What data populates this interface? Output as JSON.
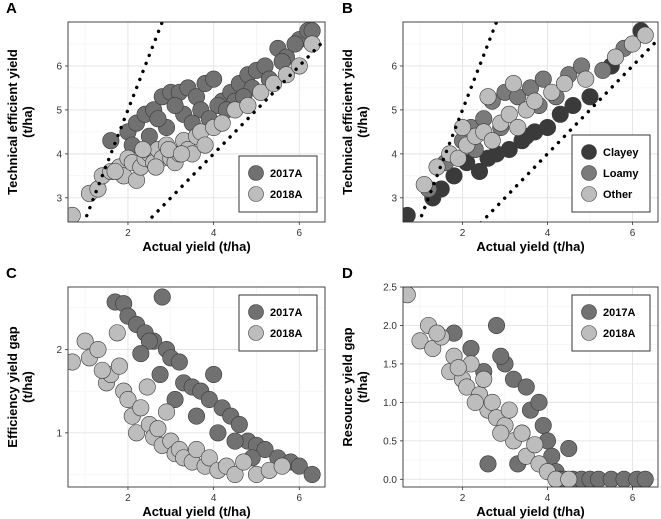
{
  "colors": {
    "2017A": "#717171",
    "2018A": "#bdbdbd",
    "Clayey": "#3a3a3a",
    "Loamy": "#7a7a7a",
    "Other": "#bdbdbd"
  },
  "chart_data": [
    {
      "id": "A",
      "type": "scatter",
      "panel_label": "A",
      "xlabel": "Actual yield (t/ha)",
      "ylabel": "Technical efficient yield (t/ha)",
      "xlim": [
        0.6,
        6.6
      ],
      "ylim": [
        2.45,
        7.0
      ],
      "xticks": [
        2,
        4,
        6
      ],
      "yticks": [
        3,
        4,
        5,
        6
      ],
      "legend": {
        "position": "bottom-right",
        "entries": [
          "2017A",
          "2018A"
        ]
      },
      "reference_lines": [
        {
          "slope": 2.5,
          "intercept": 0
        },
        {
          "slope": 1.0,
          "intercept": 0
        }
      ],
      "series": [
        {
          "name": "2017A",
          "x": [
            1.6,
            2.0,
            2.2,
            2.4,
            2.6,
            2.8,
            3.0,
            3.2,
            3.4,
            3.6,
            3.8,
            4.0,
            4.2,
            4.4,
            4.6,
            4.8,
            5.0,
            5.2,
            5.5,
            5.7,
            6.0,
            6.2,
            2.5,
            2.9,
            3.3,
            3.7,
            4.1,
            4.5,
            4.9,
            2.1,
            2.7,
            3.1,
            3.5,
            3.9,
            4.3,
            4.7,
            5.3,
            5.6,
            5.9,
            6.3
          ],
          "y": [
            4.3,
            4.5,
            4.7,
            4.9,
            5.0,
            5.3,
            5.4,
            5.4,
            5.5,
            5.3,
            5.6,
            5.7,
            5.2,
            5.4,
            5.6,
            5.8,
            5.9,
            6.0,
            6.4,
            6.2,
            6.6,
            6.8,
            4.4,
            4.6,
            4.9,
            5.0,
            5.1,
            5.2,
            5.5,
            4.2,
            4.8,
            5.1,
            4.7,
            4.8,
            5.0,
            5.3,
            5.7,
            6.1,
            6.5,
            6.8
          ]
        },
        {
          "name": "2018A",
          "x": [
            0.7,
            1.1,
            1.3,
            1.4,
            1.6,
            1.8,
            1.9,
            2.0,
            2.1,
            2.2,
            2.3,
            2.4,
            2.5,
            2.6,
            2.7,
            2.8,
            2.9,
            3.0,
            3.1,
            3.2,
            3.3,
            3.4,
            3.5,
            3.6,
            3.7,
            3.8,
            4.0,
            4.2,
            4.5,
            4.8,
            5.1,
            5.4,
            5.7,
            6.0,
            6.3,
            1.7,
            2.35,
            2.65,
            2.95,
            3.25
          ],
          "y": [
            2.6,
            3.1,
            3.2,
            3.5,
            3.6,
            3.7,
            3.5,
            3.9,
            3.8,
            3.4,
            3.7,
            3.9,
            4.0,
            3.8,
            4.1,
            3.9,
            4.2,
            3.9,
            3.8,
            4.0,
            4.3,
            4.1,
            4.0,
            4.4,
            4.5,
            4.2,
            4.6,
            4.7,
            5.0,
            5.1,
            5.4,
            5.6,
            5.8,
            6.0,
            6.5,
            3.6,
            4.1,
            3.7,
            4.1,
            4.0
          ]
        }
      ]
    },
    {
      "id": "B",
      "type": "scatter",
      "panel_label": "B",
      "xlabel": "Actual yield (t/ha)",
      "ylabel": "Technical efficient yield (t/ha)",
      "xlim": [
        0.6,
        6.6
      ],
      "ylim": [
        2.45,
        7.0
      ],
      "xticks": [
        2,
        4,
        6
      ],
      "yticks": [
        3,
        4,
        5,
        6
      ],
      "legend": {
        "position": "bottom-right",
        "entries": [
          "Clayey",
          "Loamy",
          "Other"
        ]
      },
      "reference_lines": [
        {
          "slope": 2.5,
          "intercept": 0
        },
        {
          "slope": 1.0,
          "intercept": 0
        }
      ],
      "series": [
        {
          "name": "Clayey",
          "x": [
            0.7,
            1.3,
            1.5,
            1.8,
            2.1,
            2.4,
            2.8,
            3.1,
            3.4,
            3.7,
            4.0,
            4.3,
            4.6,
            5.0,
            5.5,
            6.2,
            2.6,
            3.5
          ],
          "y": [
            2.6,
            3.0,
            3.2,
            3.5,
            3.8,
            3.6,
            4.0,
            4.1,
            4.3,
            4.5,
            4.6,
            4.9,
            5.1,
            5.3,
            6.0,
            6.8,
            3.9,
            4.4
          ]
        },
        {
          "name": "Loamy",
          "x": [
            1.2,
            1.6,
            2.0,
            2.2,
            2.5,
            2.7,
            3.0,
            3.3,
            3.6,
            3.9,
            4.2,
            4.5,
            4.8,
            5.3,
            5.8,
            2.3,
            2.9,
            3.8
          ],
          "y": [
            3.2,
            3.8,
            4.3,
            4.6,
            4.8,
            5.2,
            5.4,
            5.3,
            5.5,
            5.7,
            5.3,
            5.8,
            6.0,
            5.9,
            6.4,
            4.1,
            4.6,
            5.1
          ]
        },
        {
          "name": "Other",
          "x": [
            1.1,
            1.4,
            1.7,
            1.9,
            2.1,
            2.3,
            2.5,
            2.7,
            2.9,
            3.1,
            3.3,
            3.5,
            3.7,
            4.1,
            4.4,
            4.9,
            5.6,
            6.0,
            6.3,
            2.0,
            2.6,
            3.2
          ],
          "y": [
            3.3,
            3.7,
            4.0,
            3.9,
            4.2,
            4.4,
            4.5,
            4.3,
            4.7,
            4.9,
            4.6,
            5.0,
            5.2,
            5.4,
            5.6,
            5.7,
            6.2,
            6.5,
            6.7,
            4.6,
            5.3,
            5.6
          ]
        }
      ]
    },
    {
      "id": "C",
      "type": "scatter",
      "panel_label": "C",
      "xlabel": "Actual yield (t/ha)",
      "ylabel": "Efficiency yield gap (t/ha)",
      "xlim": [
        0.6,
        6.6
      ],
      "ylim": [
        0.35,
        2.75
      ],
      "xticks": [
        2,
        4,
        6
      ],
      "yticks": [
        1,
        2
      ],
      "legend": {
        "position": "top-right",
        "entries": [
          "2017A",
          "2018A"
        ]
      },
      "series": [
        {
          "name": "2017A",
          "x": [
            1.7,
            1.9,
            2.0,
            2.2,
            2.4,
            2.6,
            2.8,
            2.9,
            3.0,
            3.2,
            3.3,
            3.5,
            3.7,
            3.9,
            4.0,
            4.2,
            4.4,
            4.6,
            4.8,
            5.0,
            5.2,
            5.5,
            5.8,
            6.0,
            6.3,
            2.75,
            3.1,
            3.6,
            4.1,
            4.5,
            4.9,
            2.5,
            2.3
          ],
          "y": [
            2.57,
            2.55,
            2.4,
            2.3,
            2.2,
            2.1,
            2.63,
            2.0,
            1.9,
            1.85,
            1.6,
            1.55,
            1.5,
            1.4,
            1.7,
            1.3,
            1.2,
            1.1,
            0.9,
            0.85,
            0.8,
            0.7,
            0.65,
            0.6,
            0.5,
            1.7,
            1.4,
            1.2,
            1.0,
            0.9,
            0.7,
            2.1,
            1.95
          ]
        },
        {
          "name": "2018A",
          "x": [
            0.7,
            1.0,
            1.1,
            1.3,
            1.5,
            1.6,
            1.8,
            1.9,
            2.0,
            2.1,
            2.2,
            2.3,
            2.5,
            2.6,
            2.7,
            2.8,
            3.0,
            3.1,
            3.2,
            3.3,
            3.5,
            3.6,
            3.8,
            3.9,
            4.1,
            4.3,
            4.5,
            4.7,
            5.0,
            5.3,
            5.6,
            1.4,
            1.75,
            2.45,
            2.9
          ],
          "y": [
            1.85,
            2.1,
            1.9,
            2.0,
            1.6,
            1.7,
            1.8,
            1.5,
            1.4,
            1.2,
            1.0,
            1.3,
            1.1,
            0.95,
            1.05,
            0.85,
            0.9,
            0.75,
            0.8,
            0.7,
            0.65,
            0.8,
            0.6,
            0.7,
            0.55,
            0.6,
            0.5,
            0.65,
            0.5,
            0.55,
            0.6,
            1.75,
            2.2,
            1.55,
            1.25
          ]
        }
      ]
    },
    {
      "id": "D",
      "type": "scatter",
      "panel_label": "D",
      "xlabel": "Actual yield (t/ha)",
      "ylabel": "Resource yield gap (t/ha)",
      "xlim": [
        0.6,
        6.6
      ],
      "ylim": [
        -0.1,
        2.5
      ],
      "xticks": [
        2,
        4,
        6
      ],
      "yticks": [
        0.0,
        0.5,
        1.0,
        1.5,
        2.0,
        2.5
      ],
      "ytick_labels": [
        "0.0",
        "0.5",
        "1.0",
        "1.5",
        "2.0",
        "2.5"
      ],
      "legend": {
        "position": "top-right",
        "entries": [
          "2017A",
          "2018A"
        ]
      },
      "series": [
        {
          "name": "2017A",
          "x": [
            1.8,
            2.2,
            2.5,
            2.8,
            3.0,
            3.2,
            3.3,
            3.5,
            3.6,
            3.8,
            3.9,
            4.0,
            4.1,
            4.2,
            4.3,
            4.5,
            4.6,
            4.8,
            5.0,
            5.2,
            5.5,
            5.8,
            6.1,
            6.3,
            2.9,
            3.4,
            4.4,
            2.6
          ],
          "y": [
            1.9,
            1.7,
            1.4,
            2.0,
            1.5,
            1.3,
            0.2,
            1.2,
            0.9,
            1.0,
            0.7,
            0.5,
            0.3,
            0.1,
            0.0,
            0.4,
            0.0,
            0.0,
            0.0,
            0.0,
            0.0,
            0.0,
            0.0,
            0.0,
            1.6,
            0.6,
            0.0,
            0.2
          ]
        },
        {
          "name": "2018A",
          "x": [
            0.7,
            1.0,
            1.2,
            1.3,
            1.5,
            1.7,
            1.8,
            2.0,
            2.1,
            2.2,
            2.4,
            2.5,
            2.6,
            2.7,
            2.8,
            3.0,
            3.1,
            3.2,
            3.4,
            3.5,
            3.7,
            3.8,
            4.0,
            4.2,
            4.5,
            1.4,
            1.9,
            2.3,
            2.9
          ],
          "y": [
            2.4,
            1.8,
            2.0,
            1.7,
            1.85,
            1.4,
            1.6,
            1.3,
            1.2,
            1.5,
            1.1,
            1.3,
            0.9,
            1.0,
            0.8,
            0.7,
            0.9,
            0.5,
            0.6,
            0.3,
            0.45,
            0.2,
            0.1,
            0.0,
            0.0,
            1.9,
            1.45,
            1.0,
            0.6
          ]
        }
      ]
    }
  ]
}
